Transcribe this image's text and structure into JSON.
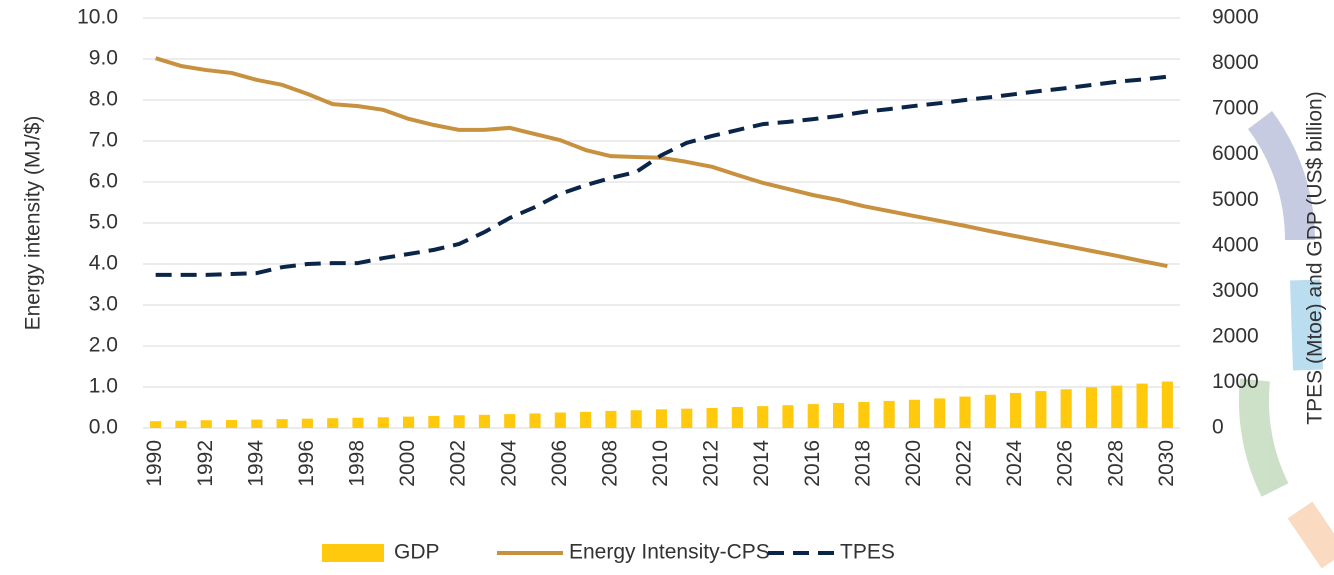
{
  "chart_data": {
    "type": "combo",
    "ylabel": "Energy intensity (MJ/$)",
    "y2label": "TPES (Mtoe) and GDP (US$ billion)",
    "categories": [
      "1990",
      null,
      "1992",
      null,
      "1994",
      null,
      "1996",
      null,
      "1998",
      null,
      "2000",
      null,
      "2002",
      null,
      "2004",
      null,
      "2006",
      null,
      "2008",
      null,
      "2010",
      null,
      "2012",
      null,
      "2014",
      null,
      "2016",
      null,
      "2018",
      null,
      "2020",
      null,
      "2022",
      null,
      "2024",
      null,
      "2026",
      null,
      "2028",
      null,
      "2030"
    ],
    "ylim": [
      0,
      10
    ],
    "yticks": [
      {
        "value": 0,
        "label": "0.0"
      },
      {
        "value": 1,
        "label": "1.0"
      },
      {
        "value": 2,
        "label": "2.0"
      },
      {
        "value": 3,
        "label": "3.0"
      },
      {
        "value": 4,
        "label": "4.0"
      },
      {
        "value": 5,
        "label": "5.0"
      },
      {
        "value": 6,
        "label": "6.0"
      },
      {
        "value": 7,
        "label": "7.0"
      },
      {
        "value": 8,
        "label": "8.0"
      },
      {
        "value": 9,
        "label": "9.0"
      },
      {
        "value": 10,
        "label": "10.0"
      }
    ],
    "y2lim": [
      0,
      9000
    ],
    "y2ticks": [
      0,
      1000,
      2000,
      3000,
      4000,
      5000,
      6000,
      7000,
      8000,
      9000
    ],
    "grid": true,
    "legend": "bottom",
    "series": [
      {
        "name": "GDP",
        "type": "bar",
        "axis": "y2",
        "color": "#ffc90e",
        "values": [
          150,
          160,
          170,
          175,
          185,
          195,
          205,
          215,
          225,
          235,
          250,
          265,
          280,
          290,
          305,
          320,
          340,
          355,
          375,
          390,
          410,
          425,
          440,
          460,
          480,
          500,
          525,
          550,
          570,
          595,
          620,
          650,
          690,
          730,
          770,
          810,
          850,
          890,
          930,
          975,
          1020
        ]
      },
      {
        "name": "Energy Intensity-CPS",
        "type": "line",
        "color": "#c8913f",
        "values": [
          9.02,
          8.83,
          8.73,
          8.66,
          8.49,
          8.37,
          8.15,
          7.9,
          7.85,
          7.76,
          7.54,
          7.39,
          7.27,
          7.27,
          7.32,
          7.17,
          7.02,
          6.78,
          6.63,
          6.61,
          6.59,
          6.49,
          6.37,
          6.17,
          5.98,
          5.83,
          5.68,
          5.56,
          5.41,
          5.29,
          5.17,
          5.05,
          4.93,
          4.8,
          4.68,
          4.56,
          4.44,
          4.32,
          4.2,
          4.07,
          3.95
        ]
      },
      {
        "name": "TPES",
        "type": "dashed-line",
        "axis": "y2",
        "color": "#0b2548",
        "values": [
          3360,
          3360,
          3360,
          3380,
          3400,
          3530,
          3600,
          3620,
          3620,
          3730,
          3820,
          3910,
          4040,
          4300,
          4610,
          4850,
          5140,
          5330,
          5490,
          5620,
          5990,
          6260,
          6410,
          6540,
          6670,
          6720,
          6780,
          6850,
          6940,
          7000,
          7070,
          7130,
          7200,
          7260,
          7330,
          7400,
          7460,
          7530,
          7600,
          7650,
          7710
        ]
      }
    ]
  }
}
